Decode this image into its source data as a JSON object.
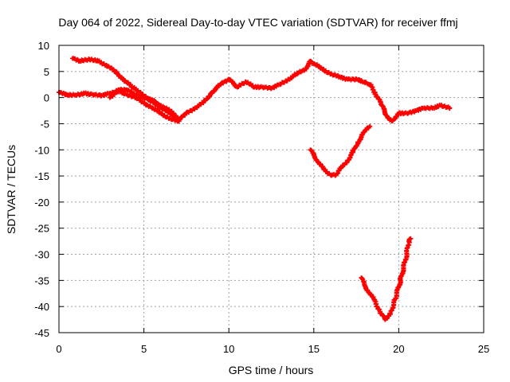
{
  "chart_data": {
    "type": "scatter",
    "title": "Day 064 of 2022, Sidereal Day-to-day VTEC variation (SDTVAR) for receiver ffmj",
    "xlabel": "GPS time / hours",
    "ylabel": "SDTVAR / TECUs",
    "xlim": [
      0,
      25
    ],
    "ylim": [
      -45,
      10
    ],
    "xticks": [
      0,
      5,
      10,
      15,
      20,
      25
    ],
    "yticks": [
      10,
      5,
      0,
      -5,
      -10,
      -15,
      -20,
      -25,
      -30,
      -35,
      -40,
      -45
    ],
    "grid": true,
    "marker": "plus",
    "color": "#ff0000",
    "series": [
      {
        "points": [
          [
            0.0,
            1.0
          ],
          [
            0.5,
            0.5
          ],
          [
            1.0,
            0.5
          ],
          [
            1.5,
            0.8
          ],
          [
            2.0,
            0.6
          ],
          [
            2.5,
            0.4
          ],
          [
            3.0,
            0.8
          ],
          [
            3.5,
            1.2
          ],
          [
            4.0,
            0.6
          ],
          [
            4.5,
            0.0
          ],
          [
            5.0,
            -1.0
          ],
          [
            5.5,
            -2.0
          ],
          [
            6.0,
            -3.0
          ],
          [
            6.5,
            -4.0
          ],
          [
            7.0,
            -4.5
          ],
          [
            7.5,
            -3.0
          ],
          [
            8.0,
            -2.0
          ],
          [
            8.5,
            -1.0
          ],
          [
            9.0,
            1.0
          ],
          [
            9.5,
            2.5
          ],
          [
            10.0,
            3.5
          ],
          [
            10.5,
            2.0
          ],
          [
            11.0,
            3.0
          ],
          [
            11.5,
            2.0
          ],
          [
            12.0,
            2.0
          ],
          [
            12.5,
            1.8
          ],
          [
            13.0,
            2.5
          ],
          [
            13.5,
            3.5
          ],
          [
            14.0,
            4.5
          ],
          [
            14.5,
            5.5
          ],
          [
            14.8,
            7.0
          ],
          [
            15.0,
            6.5
          ],
          [
            15.5,
            5.5
          ],
          [
            16.0,
            4.5
          ],
          [
            16.5,
            4.0
          ],
          [
            17.0,
            3.5
          ],
          [
            17.5,
            3.5
          ],
          [
            18.0,
            3.0
          ],
          [
            18.3,
            2.5
          ],
          [
            18.6,
            1.0
          ],
          [
            19.0,
            -1.5
          ],
          [
            19.3,
            -3.5
          ],
          [
            19.6,
            -4.5
          ],
          [
            20.0,
            -3.0
          ],
          [
            20.5,
            -3.0
          ],
          [
            21.0,
            -2.5
          ],
          [
            21.5,
            -2.0
          ],
          [
            22.0,
            -2.0
          ],
          [
            22.5,
            -1.5
          ],
          [
            23.0,
            -2.0
          ]
        ]
      },
      {
        "points": [
          [
            0.8,
            7.5
          ],
          [
            1.2,
            7.0
          ],
          [
            1.8,
            7.3
          ],
          [
            2.3,
            7.0
          ],
          [
            2.8,
            6.2
          ],
          [
            3.3,
            5.0
          ],
          [
            3.8,
            3.5
          ],
          [
            4.3,
            2.0
          ],
          [
            4.8,
            1.0
          ],
          [
            5.3,
            -0.5
          ],
          [
            5.8,
            -1.5
          ],
          [
            6.3,
            -2.5
          ],
          [
            6.7,
            -3.5
          ],
          [
            7.0,
            -4.0
          ]
        ]
      },
      {
        "points": [
          [
            3.0,
            0.0
          ],
          [
            3.5,
            1.5
          ],
          [
            4.0,
            1.5
          ],
          [
            4.5,
            0.5
          ],
          [
            5.0,
            0.0
          ],
          [
            5.5,
            -0.5
          ],
          [
            6.0,
            -1.5
          ],
          [
            6.5,
            -2.5
          ],
          [
            6.9,
            -3.5
          ]
        ]
      },
      {
        "points": [
          [
            14.8,
            -10.0
          ],
          [
            15.0,
            -11.0
          ],
          [
            15.3,
            -12.5
          ],
          [
            15.6,
            -13.8
          ],
          [
            16.0,
            -14.8
          ],
          [
            16.3,
            -14.8
          ],
          [
            16.6,
            -13.5
          ],
          [
            17.0,
            -12.0
          ],
          [
            17.3,
            -10.5
          ],
          [
            17.6,
            -8.5
          ],
          [
            18.0,
            -6.5
          ],
          [
            18.3,
            -5.5
          ]
        ]
      },
      {
        "points": [
          [
            17.8,
            -34.5
          ],
          [
            18.0,
            -36.0
          ],
          [
            18.3,
            -37.5
          ],
          [
            18.6,
            -39.0
          ],
          [
            18.9,
            -41.0
          ],
          [
            19.2,
            -42.5
          ],
          [
            19.5,
            -41.5
          ],
          [
            19.8,
            -38.5
          ],
          [
            20.1,
            -35.0
          ],
          [
            20.4,
            -31.0
          ],
          [
            20.6,
            -27.5
          ],
          [
            20.7,
            -27.0
          ]
        ]
      }
    ]
  }
}
